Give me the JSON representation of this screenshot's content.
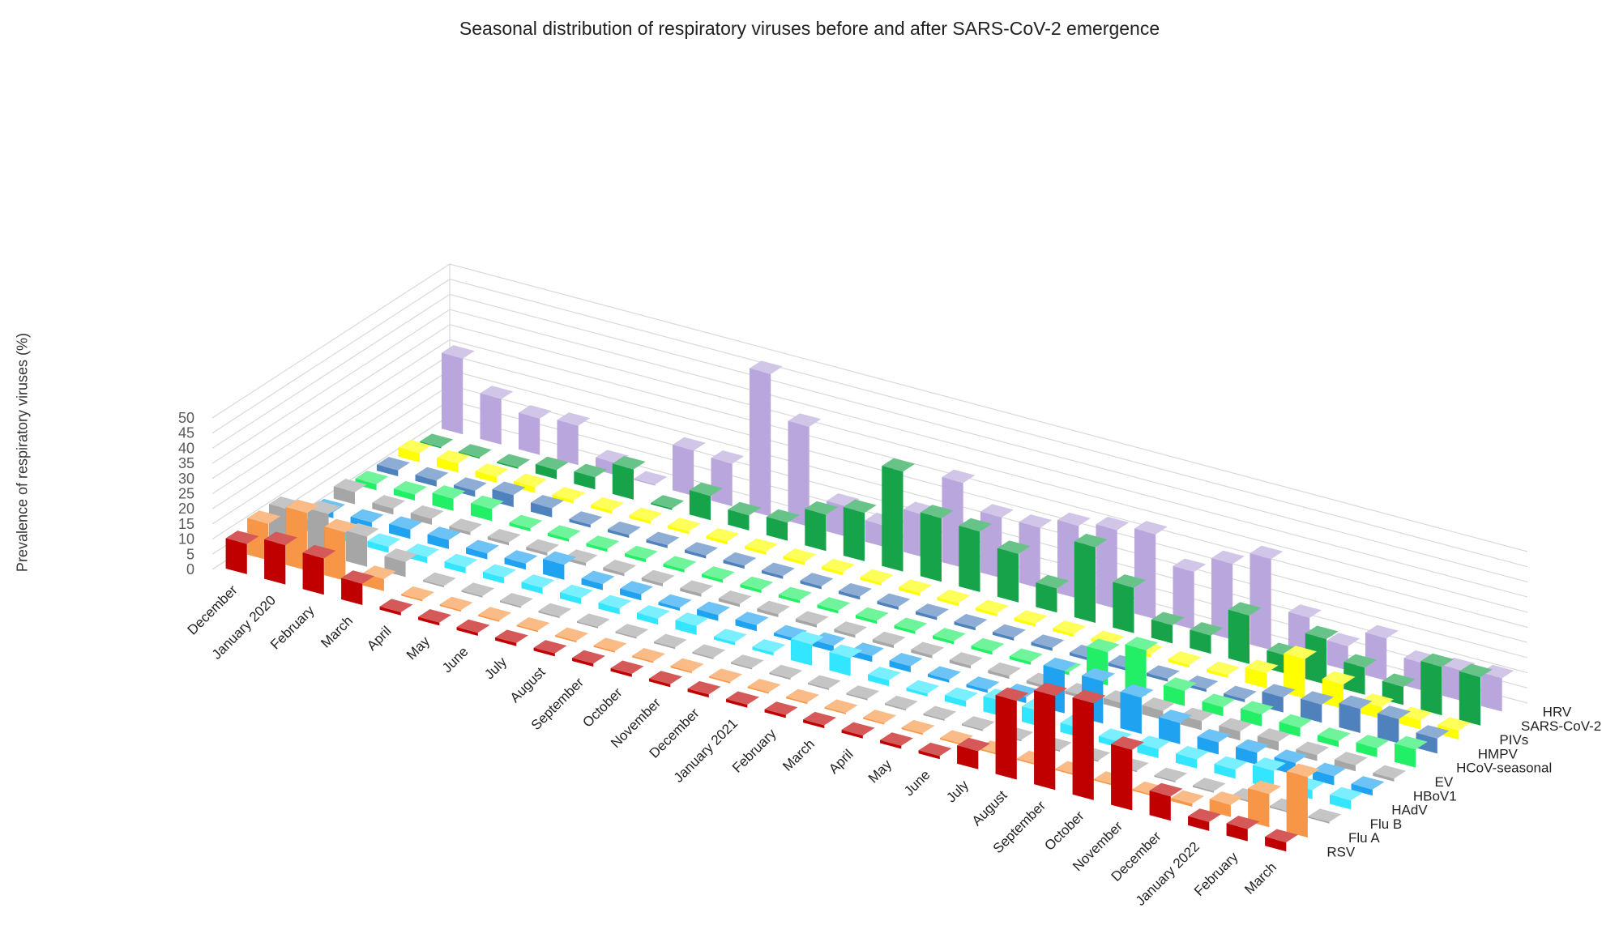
{
  "chart_data": {
    "type": "bar",
    "subtype": "3d-column",
    "title": "Seasonal distribution of respiratory viruses before and after SARS-CoV-2  emergence",
    "ylabel": "Prevalence of respiratory viruses (%)",
    "xlabel": "",
    "ylim": [
      0,
      50
    ],
    "yticks": [
      "0",
      "5",
      "10",
      "15",
      "20",
      "25",
      "30",
      "35",
      "40",
      "45",
      "50"
    ],
    "grid": true,
    "categories": [
      "December",
      "January 2020",
      "February",
      "March",
      "April",
      "May",
      "June",
      "July",
      "August",
      "September",
      "October",
      "November",
      "December",
      "January 2021",
      "February",
      "March",
      "April",
      "May",
      "June",
      "July",
      "August",
      "September",
      "October",
      "November",
      "December",
      "January 2022",
      "February",
      "March"
    ],
    "series": [
      {
        "name": "RSV",
        "color": "#c00000",
        "values": [
          10,
          13,
          12,
          7,
          1,
          1,
          1,
          1,
          1,
          1,
          1,
          1,
          1,
          1,
          1,
          1,
          1,
          1,
          1,
          6,
          26,
          31,
          32,
          20,
          8,
          3,
          4,
          3
        ]
      },
      {
        "name": "Flu A",
        "color": "#f79646",
        "values": [
          12,
          19,
          16,
          4,
          0.5,
          0.5,
          0.5,
          0.5,
          0.5,
          0.5,
          0.5,
          0.5,
          0.5,
          0.5,
          0.5,
          0.5,
          0.5,
          0.5,
          0.5,
          0.5,
          0.5,
          0.5,
          0.5,
          0.5,
          1,
          4,
          11,
          20
        ]
      },
      {
        "name": "Flu B",
        "color": "#a6a6a6",
        "values": [
          12,
          14,
          10,
          5,
          0.5,
          0.5,
          0.5,
          0.5,
          0.5,
          0.5,
          0.5,
          0.5,
          0.5,
          0.5,
          0.5,
          0.5,
          0.5,
          0.5,
          0.5,
          0.5,
          0.5,
          0.5,
          0.5,
          0.5,
          0.5,
          0.5,
          0.5,
          0.5
        ]
      },
      {
        "name": "HAdV",
        "color": "#33e6ff",
        "values": [
          4,
          3,
          2,
          2,
          2,
          2,
          2,
          2,
          2,
          2,
          3,
          1,
          1,
          7,
          6,
          2,
          1,
          2,
          5,
          5,
          3,
          2,
          3,
          3,
          3,
          6,
          3,
          3
        ]
      },
      {
        "name": "HBoV1",
        "color": "#1fa2ef",
        "values": [
          2,
          2,
          3,
          3,
          2,
          2,
          5,
          2,
          2,
          1,
          2,
          2,
          1,
          2,
          2,
          2,
          1,
          1,
          2,
          14,
          14,
          12,
          7,
          4,
          4,
          4,
          3,
          2
        ]
      },
      {
        "name": "EV",
        "color": "#a6a6a6",
        "values": [
          4,
          2,
          2,
          1,
          1,
          1,
          1,
          1,
          1,
          1,
          1,
          1,
          1,
          1,
          1,
          1,
          1,
          1,
          1,
          1,
          2,
          3,
          3,
          3,
          3,
          2,
          2,
          1
        ]
      },
      {
        "name": "HCoV-seasonal",
        "color": "#22ee66",
        "values": [
          2,
          2,
          4,
          4,
          1,
          1,
          1,
          1,
          1,
          1,
          1,
          1,
          1,
          1,
          1,
          1,
          1,
          1,
          1,
          11,
          15,
          5,
          3,
          4,
          3,
          2,
          3,
          6
        ]
      },
      {
        "name": "HMPV",
        "color": "#4f81bd",
        "values": [
          2,
          2,
          2,
          4,
          3,
          1,
          1,
          1,
          1,
          1,
          1,
          1,
          1,
          1,
          1,
          1,
          1,
          1,
          1,
          1,
          1,
          1,
          1,
          5,
          6,
          8,
          8,
          5
        ]
      },
      {
        "name": "PIVs",
        "color": "#ffff00",
        "values": [
          3,
          3,
          2,
          2,
          1,
          1,
          1,
          1,
          1,
          1,
          1,
          1,
          1,
          1,
          1,
          1,
          1,
          1,
          1,
          1,
          1,
          1,
          5,
          13,
          8,
          4,
          3,
          3
        ]
      },
      {
        "name": "SARS-CoV-2",
        "color": "#16a34a",
        "values": [
          0,
          0,
          0.5,
          3,
          4,
          10,
          0.5,
          8,
          5,
          6,
          12,
          16,
          33,
          21,
          20,
          16,
          8,
          25,
          15,
          6,
          6,
          16,
          6,
          15,
          9,
          6,
          16,
          16
        ]
      },
      {
        "name": "HRV",
        "color": "#b8a6dc",
        "values": [
          25,
          15,
          12,
          13,
          4,
          0,
          15,
          14,
          47,
          33,
          10,
          7,
          14,
          28,
          20,
          20,
          24,
          26,
          28,
          19,
          25,
          30,
          14,
          8,
          14,
          9,
          10,
          11
        ]
      }
    ],
    "legend": [
      "HRV",
      "SARS-CoV-2",
      "PIVs",
      "HMPV",
      "HCoV-seasonal",
      "EV",
      "HBoV1",
      "HAdV",
      "Flu B",
      "Flu A",
      "RSV"
    ]
  }
}
